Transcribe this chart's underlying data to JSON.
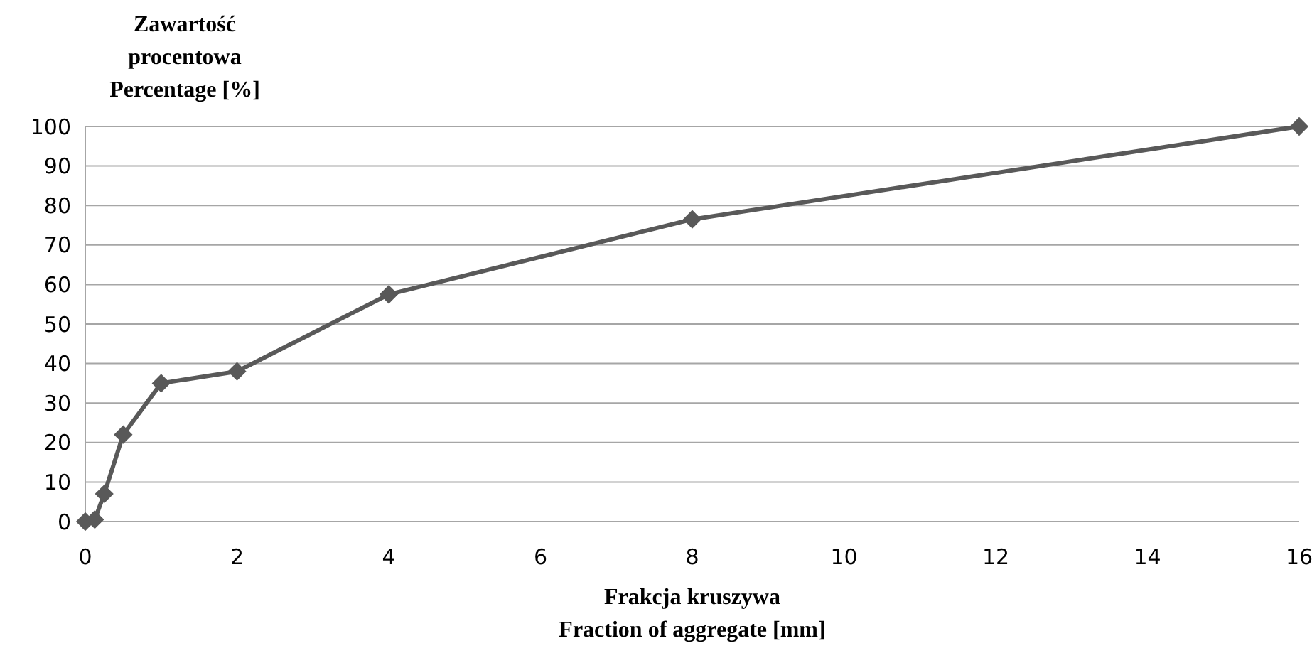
{
  "chart_data": {
    "type": "line",
    "ylabel": "Zawartość\nprocentowa\nPercentage [%]",
    "xlabel": "Frakcja kruszywa\nFraction of aggregate [mm]",
    "x": [
      0,
      0.125,
      0.25,
      0.5,
      1,
      2,
      4,
      8,
      16
    ],
    "series": [
      {
        "color": "#595959",
        "values": [
          0,
          0.5,
          7,
          22,
          35,
          38,
          57.5,
          76.5,
          100
        ]
      }
    ],
    "xlim": [
      0,
      16
    ],
    "xticks": [
      0,
      2,
      4,
      6,
      8,
      10,
      12,
      14,
      16
    ],
    "ylim": [
      0,
      100
    ],
    "yticks": [
      0,
      10,
      20,
      30,
      40,
      50,
      60,
      70,
      80,
      90,
      100
    ],
    "grid": "y",
    "marker": "diamond",
    "line_style": "solid"
  }
}
